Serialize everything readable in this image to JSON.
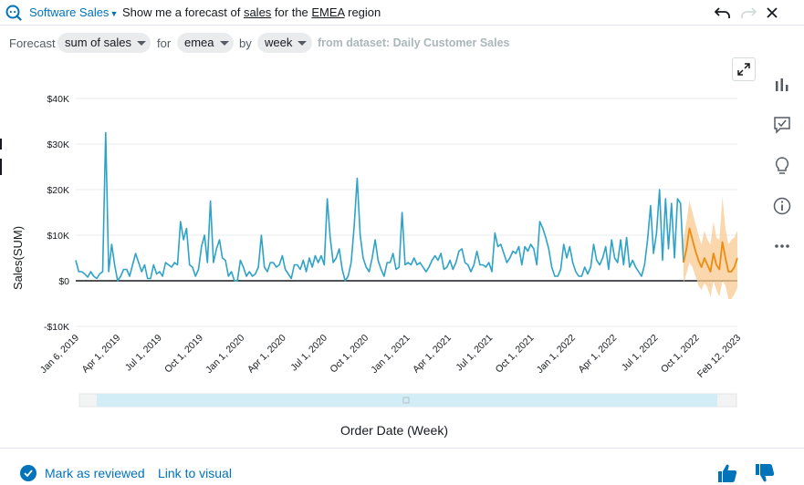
{
  "topbar": {
    "topic": "Software Sales",
    "question_prefix": "Show me a forecast of ",
    "question_term1": "sales",
    "question_mid": " for the ",
    "question_term2": "EMEA",
    "question_suffix": " region",
    "icons": [
      "undo-icon",
      "redo-icon",
      "close-icon"
    ]
  },
  "filters": {
    "forecast_label": "Forecast",
    "measure": "sum of sales",
    "for_label": "for",
    "region": "emea",
    "by_label": "by",
    "period": "week",
    "dataset_text": "from dataset: Daily Customer Sales"
  },
  "side_toolbar": [
    "bar-chart-icon",
    "review-check-icon",
    "lightbulb-icon",
    "info-icon",
    "more-icon"
  ],
  "footer": {
    "mark_reviewed": "Mark as reviewed",
    "link_to_visual": "Link to visual",
    "icons": [
      "thumbs-up-icon",
      "thumbs-down-icon"
    ]
  },
  "colors": {
    "actual": "#2ea2c9",
    "forecast": "#ec8d10",
    "band": "#f8c990",
    "link": "#0073bb",
    "scroll_track": "#d3edf7"
  },
  "chart_data": {
    "type": "line",
    "title": "",
    "xlabel": "Order Date (Week)",
    "ylabel": "Sales(SUM)",
    "ylim": [
      -10000,
      40000
    ],
    "yticks": [
      -10000,
      0,
      10000,
      20000,
      30000,
      40000
    ],
    "ytick_labels": [
      "-$10K",
      "$0",
      "$10K",
      "$20K",
      "$30K",
      "$40K"
    ],
    "xtick_labels": [
      "Jan 6, 2019",
      "Apr 1, 2019",
      "Jul 1, 2019",
      "Oct 1, 2019",
      "Jan 1, 2020",
      "Apr 1, 2020",
      "Jul 1, 2020",
      "Oct 1, 2020",
      "Jan 1, 2021",
      "Apr 1, 2021",
      "Jul 1, 2021",
      "Oct 1, 2021",
      "Jan 1, 2022",
      "Apr 1, 2022",
      "Jul 1, 2022",
      "Oct 1, 2022",
      "Feb 12, 2023"
    ],
    "x_start": "2019-01-06",
    "x_end": "2023-02-12",
    "series": [
      {
        "values": [
          4500,
          2000,
          2000,
          1500,
          800,
          2000,
          1000,
          500,
          1500,
          2000,
          32500,
          2000,
          8000,
          3500,
          0,
          1000,
          2500,
          2500,
          1000,
          3500,
          6000,
          4000,
          2000,
          3500,
          500,
          500,
          3500,
          1500,
          2000,
          1000,
          4000,
          3500,
          3000,
          4000,
          3500,
          13000,
          9000,
          11500,
          3500,
          3000,
          1000,
          2500,
          7500,
          10000,
          4000,
          17500,
          4000,
          7000,
          9000,
          5000,
          4500,
          1000,
          2000,
          0,
          0,
          4500,
          3000,
          1000,
          2000,
          1000,
          1500,
          3000,
          10000,
          3000,
          2000,
          4000,
          4000,
          3000,
          3500,
          5500,
          2500,
          1500,
          500,
          3500,
          3500,
          2500,
          4500,
          2000,
          5000,
          3000,
          5500,
          4000,
          5500,
          3500,
          18000,
          9500,
          4000,
          5000,
          7000,
          2500,
          0,
          1000,
          4000,
          12000,
          22500,
          10000,
          5000,
          3000,
          2000,
          5000,
          9000,
          4500,
          2500,
          1000,
          4000,
          4000,
          6000,
          2500,
          3000,
          15000,
          3500,
          4000,
          3500,
          5000,
          3500,
          4000,
          3000,
          2000,
          3000,
          4500,
          5500,
          4500,
          6000,
          2500,
          3000,
          4500,
          2500,
          4000,
          6500,
          7000,
          4000,
          3500,
          2000,
          3500,
          6500,
          3500,
          3500,
          3000,
          4000,
          2000,
          10500,
          7500,
          8000,
          6000,
          4000,
          5000,
          6500,
          6000,
          7500,
          3500,
          7500,
          6500,
          8000,
          7000,
          3500,
          13000,
          11500,
          9500,
          7000,
          3000,
          1000,
          1000,
          2500,
          8000,
          5000,
          7500,
          4000,
          2000,
          1000,
          1000,
          3000,
          1500,
          3000,
          8000,
          4500,
          3500,
          5000,
          7500,
          2500,
          9000,
          5000,
          4000,
          9000,
          3500,
          9500,
          3000,
          4500,
          3000,
          2000,
          1000,
          3500,
          9000,
          16500,
          6000,
          10500,
          20000,
          4500,
          18000,
          7000,
          17000,
          5000,
          18000,
          17000,
          4000
        ]
      },
      {
        "values": [
          4000,
          7000,
          11500,
          9000,
          6500,
          4500,
          3000,
          5000,
          3500,
          2000,
          6000,
          3500,
          2500,
          8500,
          5000,
          2000,
          2000,
          3000,
          5000
        ],
        "lower": [
          -500,
          1500,
          4000,
          3000,
          1000,
          -1000,
          -2000,
          -500,
          -1500,
          -3500,
          0,
          -2000,
          -3500,
          0,
          -1000,
          -4000,
          -4000,
          -3000,
          -1500
        ],
        "upper": [
          9000,
          13000,
          17500,
          15000,
          12500,
          10000,
          8000,
          11000,
          9000,
          8000,
          13000,
          9500,
          9000,
          18500,
          11500,
          8000,
          9000,
          9500,
          11000
        ]
      }
    ]
  }
}
